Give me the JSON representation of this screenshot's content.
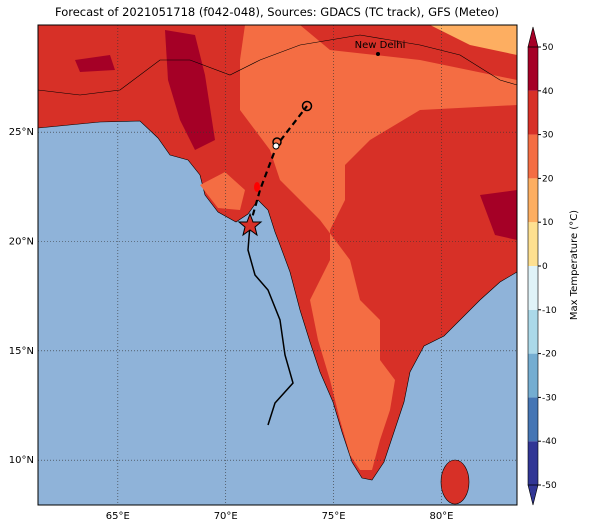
{
  "title": "Forecast of 2021051718 (f042-048), Sources: GDACS (TC track), GFS (Meteo)",
  "map": {
    "xlim": [
      61.3,
      83.5
    ],
    "ylim": [
      7.95,
      29.9
    ],
    "xticks": [
      {
        "value": 65,
        "label": "65°E"
      },
      {
        "value": 70,
        "label": "70°E"
      },
      {
        "value": 75,
        "label": "75°E"
      },
      {
        "value": 80,
        "label": "80°E"
      }
    ],
    "yticks": [
      {
        "value": 10,
        "label": "10°N"
      },
      {
        "value": 15,
        "label": "15°N"
      },
      {
        "value": 20,
        "label": "20°N"
      },
      {
        "value": 25,
        "label": "25°N"
      }
    ],
    "city": "New Delhi"
  },
  "colorbar": {
    "label": "Max Temperature (°C)",
    "lim": [
      -50,
      50
    ],
    "ticks": [
      -50,
      -40,
      -30,
      -20,
      -10,
      0,
      10,
      20,
      30,
      40,
      50
    ],
    "colors": [
      "#313695",
      "#4575b4",
      "#74add1",
      "#abd9e9",
      "#e0f3f8",
      "#fee090",
      "#fdae61",
      "#f46d43",
      "#d73027",
      "#a50026"
    ]
  }
}
